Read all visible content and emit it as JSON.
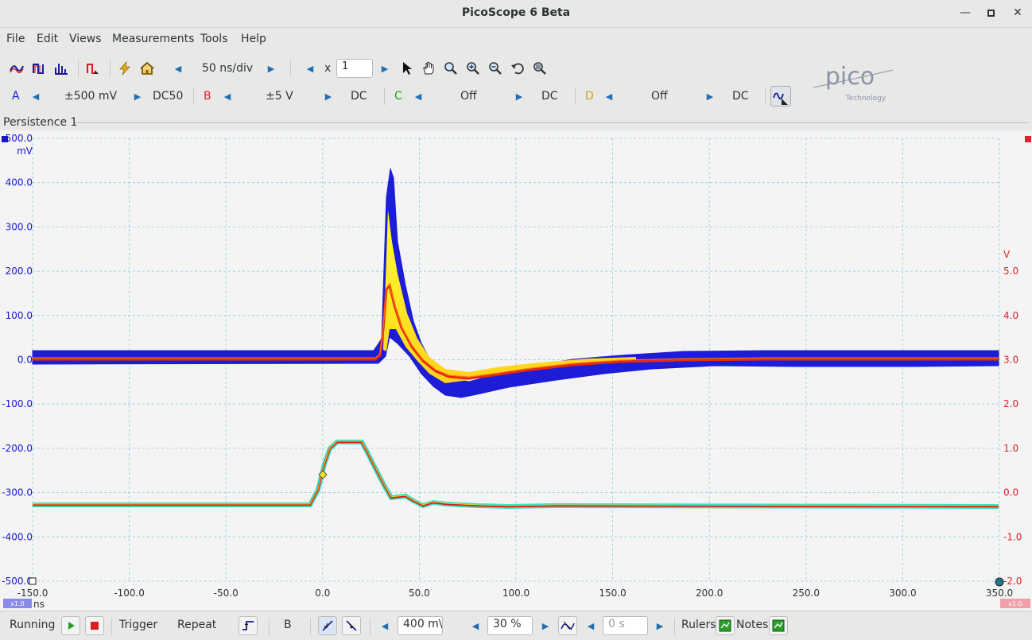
{
  "window": {
    "title": "PicoScope 6 Beta"
  },
  "menu": [
    "File",
    "Edit",
    "Views",
    "Measurements",
    "Tools",
    "Help"
  ],
  "toolbar": {
    "timebase": "50 ns/div",
    "zoom_prefix": "x",
    "zoom_value": "1"
  },
  "channels": [
    {
      "letter": "A",
      "range": "±500 mV",
      "coupling": "DC50(",
      "color": "#1515d0"
    },
    {
      "letter": "B",
      "range": "±5 V",
      "coupling": "DC",
      "color": "#e0202a"
    },
    {
      "letter": "C",
      "range": "Off",
      "coupling": "DC",
      "color": "#18a018"
    },
    {
      "letter": "D",
      "range": "Off",
      "coupling": "DC",
      "color": "#d4a010"
    }
  ],
  "logo": {
    "text": "pico",
    "subtext": "Technology"
  },
  "view": {
    "tab_label": "Persistence 1"
  },
  "axes": {
    "x_ticks": [
      "-150.0",
      "-100.0",
      "-50.0",
      "0.0",
      "50.0",
      "100.0",
      "150.0",
      "200.0",
      "250.0",
      "300.0",
      "350.0"
    ],
    "x_unit": "ns",
    "left_ticks": [
      "500.0",
      "400.0",
      "300.0",
      "200.0",
      "100.0",
      "0.0",
      "-100.0",
      "-200.0",
      "-300.0",
      "-400.0",
      "-500.0"
    ],
    "left_unit": "mV",
    "right_ticks": [
      "5.0",
      "4.0",
      "3.0",
      "2.0",
      "1.0",
      "0.0",
      "-1.0",
      "-2.0"
    ],
    "right_unit": "V",
    "left_scale_badge": "x1.0",
    "right_scale_badge": "x1.0",
    "left_color": "#1515d0",
    "right_color": "#e0202a"
  },
  "status": {
    "run_state": "Running",
    "trigger_label": "Trigger",
    "trigger_mode": "Repeat",
    "trigger_channel": "B",
    "trigger_level": "400 m\\",
    "pretrigger": "30 %",
    "delay": "0 s",
    "rulers_label": "Rulers",
    "notes_label": "Notes"
  }
}
